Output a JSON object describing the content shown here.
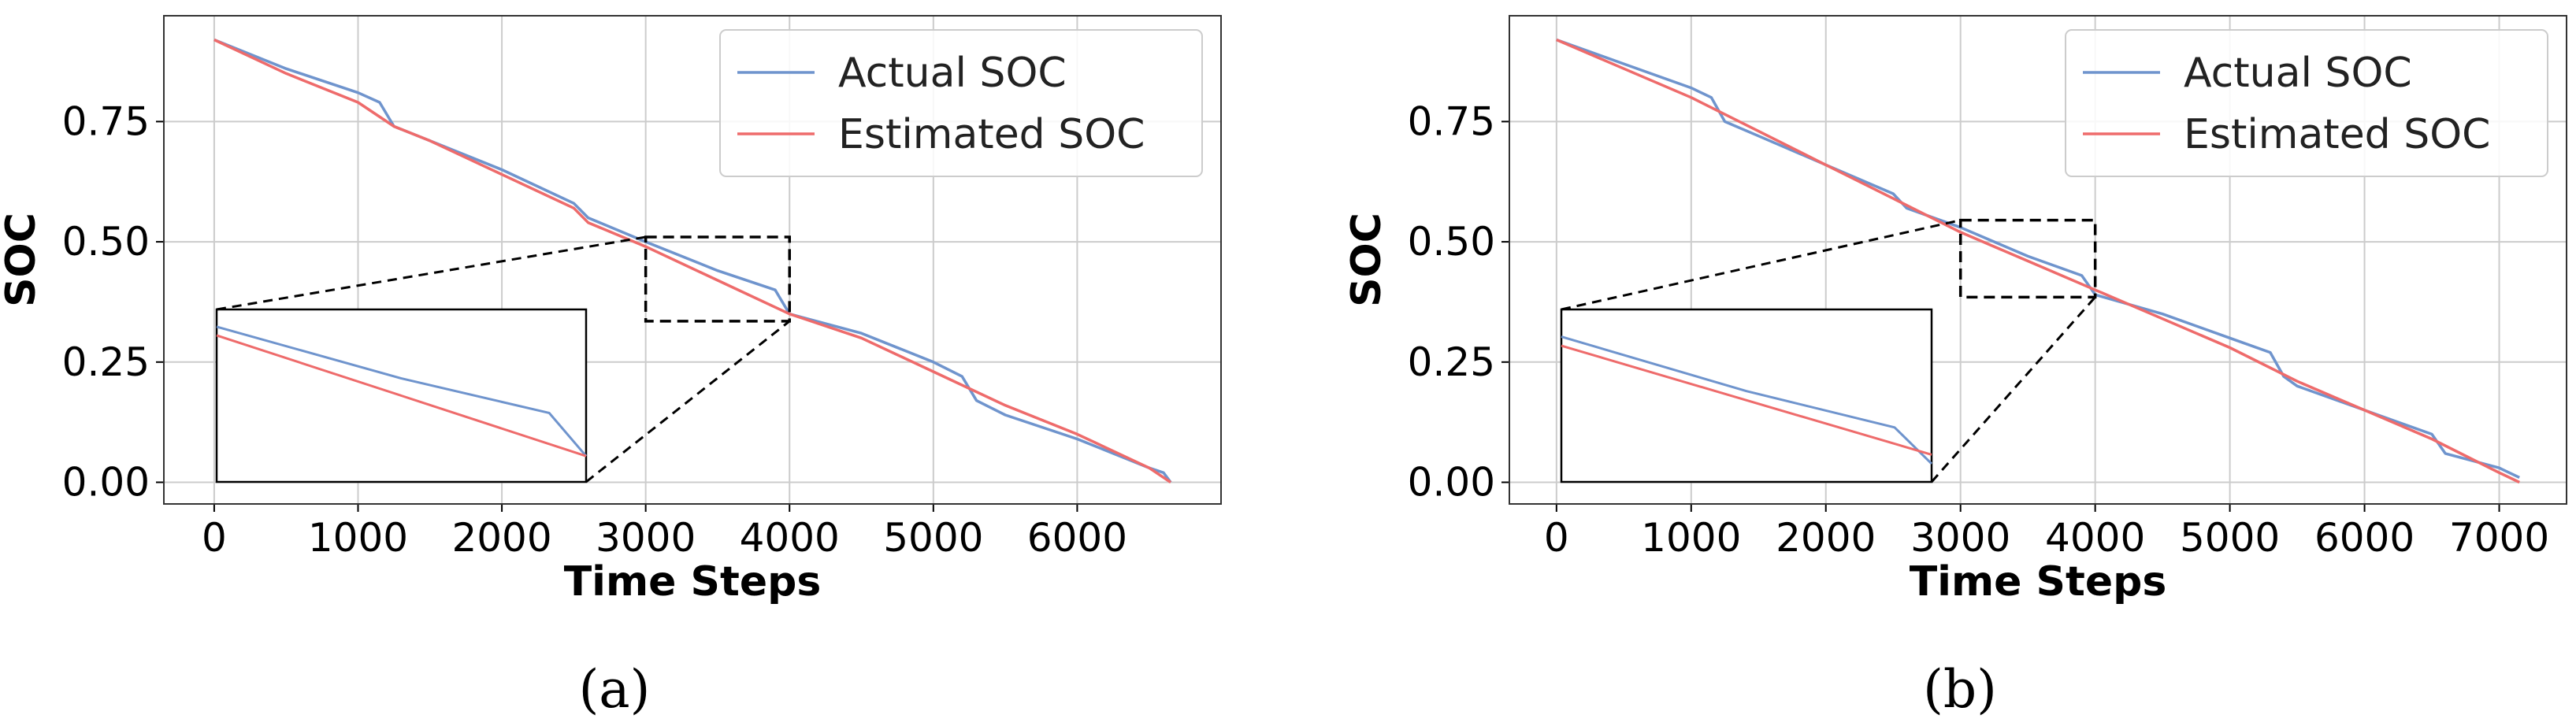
{
  "colors": {
    "actual": "#6f94cd",
    "estimated": "#ee6b6b",
    "grid": "#cccccc",
    "frame": "#333333"
  },
  "panels": [
    {
      "caption": "(a)",
      "chart_data": {
        "type": "line",
        "xlabel": "Time Steps",
        "ylabel": "SOC",
        "xlim": [
          -350,
          7000
        ],
        "ylim": [
          -0.045,
          0.97
        ],
        "xticks": [
          0,
          1000,
          2000,
          3000,
          4000,
          5000,
          6000
        ],
        "xtick_labels": [
          "0",
          "1000",
          "2000",
          "3000",
          "4000",
          "5000",
          "6000"
        ],
        "yticks": [
          0.0,
          0.25,
          0.5,
          0.75
        ],
        "ytick_labels": [
          "0.00",
          "0.25",
          "0.50",
          "0.75"
        ],
        "grid": true,
        "legend": {
          "position": "top-right",
          "entries": [
            "Actual SOC",
            "Estimated SOC"
          ]
        },
        "series": [
          {
            "name": "Actual SOC",
            "x": [
              0,
              500,
              1000,
              1150,
              1250,
              1500,
              2000,
              2500,
              2600,
              3000,
              3500,
              3900,
              4000,
              4500,
              5000,
              5200,
              5300,
              5500,
              6000,
              6500,
              6600,
              6650
            ],
            "y": [
              0.92,
              0.86,
              0.81,
              0.79,
              0.74,
              0.71,
              0.65,
              0.58,
              0.55,
              0.5,
              0.44,
              0.4,
              0.35,
              0.31,
              0.25,
              0.22,
              0.17,
              0.14,
              0.09,
              0.03,
              0.02,
              0.0
            ]
          },
          {
            "name": "Estimated SOC",
            "x": [
              0,
              500,
              1000,
              1250,
              1500,
              2000,
              2500,
              2600,
              3000,
              3500,
              4000,
              4500,
              5000,
              5500,
              6000,
              6500,
              6650
            ],
            "y": [
              0.92,
              0.85,
              0.79,
              0.74,
              0.71,
              0.64,
              0.57,
              0.54,
              0.49,
              0.42,
              0.35,
              0.3,
              0.23,
              0.16,
              0.1,
              0.03,
              0.0
            ]
          }
        ],
        "zoom_box": {
          "x": [
            3000,
            4000
          ],
          "y": [
            0.335,
            0.51
          ]
        },
        "inset": {
          "x": [
            3000,
            4000
          ],
          "y": [
            0.32,
            0.52
          ],
          "placement": "lower-left"
        }
      }
    },
    {
      "caption": "(b)",
      "chart_data": {
        "type": "line",
        "xlabel": "Time Steps",
        "ylabel": "SOC",
        "xlim": [
          -350,
          7500
        ],
        "ylim": [
          -0.045,
          0.97
        ],
        "xticks": [
          0,
          1000,
          2000,
          3000,
          4000,
          5000,
          6000,
          7000
        ],
        "xtick_labels": [
          "0",
          "1000",
          "2000",
          "3000",
          "4000",
          "5000",
          "6000",
          "7000"
        ],
        "yticks": [
          0.0,
          0.25,
          0.5,
          0.75
        ],
        "ytick_labels": [
          "0.00",
          "0.25",
          "0.50",
          "0.75"
        ],
        "grid": true,
        "legend": {
          "position": "top-right",
          "entries": [
            "Actual SOC",
            "Estimated SOC"
          ]
        },
        "series": [
          {
            "name": "Actual SOC",
            "x": [
              0,
              500,
              1000,
              1150,
              1250,
              1500,
              2000,
              2500,
              2600,
              3000,
              3500,
              3900,
              4000,
              4500,
              5000,
              5300,
              5400,
              5500,
              6000,
              6500,
              6600,
              7000,
              7150
            ],
            "y": [
              0.92,
              0.87,
              0.82,
              0.8,
              0.75,
              0.72,
              0.66,
              0.6,
              0.57,
              0.53,
              0.47,
              0.43,
              0.39,
              0.35,
              0.3,
              0.27,
              0.22,
              0.2,
              0.15,
              0.1,
              0.06,
              0.03,
              0.01
            ]
          },
          {
            "name": "Estimated SOC",
            "x": [
              0,
              500,
              1000,
              1500,
              2000,
              2500,
              3000,
              3500,
              4000,
              4500,
              5000,
              5500,
              6000,
              6500,
              7000,
              7150
            ],
            "y": [
              0.92,
              0.86,
              0.8,
              0.73,
              0.66,
              0.59,
              0.52,
              0.46,
              0.4,
              0.34,
              0.28,
              0.21,
              0.15,
              0.09,
              0.02,
              0.0
            ]
          }
        ],
        "zoom_box": {
          "x": [
            3000,
            4000
          ],
          "y": [
            0.385,
            0.545
          ]
        },
        "inset": {
          "x": [
            3000,
            4000
          ],
          "y": [
            0.37,
            0.56
          ],
          "placement": "lower-left"
        }
      }
    }
  ]
}
